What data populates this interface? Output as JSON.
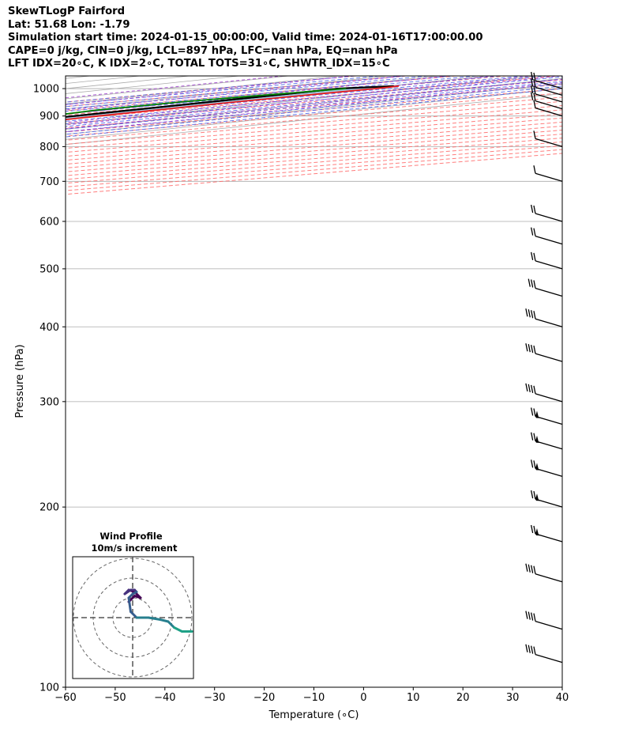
{
  "header": {
    "title": "SkewTLogP Fairford",
    "location": "Lat: 51.68   Lon: -1.79",
    "times": "Simulation start time: 2024-01-15_00:00:00, Valid time: 2024-01-16T17:00:00.00",
    "params": "CAPE=0 j/kg, CIN=0 j/kg, LCL=897 hPa, LFC=nan hPa, EQ=nan hPa",
    "indices": "LFT IDX=20∘C, K IDX=2∘C, TOTAL TOTS=31∘C, SHWTR_IDX=15∘C"
  },
  "chart_data": {
    "type": "line",
    "skewt": {
      "xlabel": "Temperature (∘C)",
      "ylabel": "Pressure (hPa)",
      "xlim": [
        -60,
        40
      ],
      "ylim": [
        1050,
        100
      ],
      "x_ticks": [
        -60,
        -50,
        -40,
        -30,
        -20,
        -10,
        0,
        10,
        20,
        30,
        40
      ],
      "x_tick_labels": [
        "−60",
        "−50",
        "−40",
        "−30",
        "−20",
        "−10",
        "0",
        "10",
        "20",
        "30",
        "40"
      ],
      "p_ticks": [
        1000,
        900,
        800,
        700,
        600,
        500,
        400,
        300,
        200,
        100
      ],
      "p_tick_labels": [
        "1000",
        "900",
        "800",
        "700",
        "600",
        "500",
        "400",
        "300",
        "200",
        "100"
      ],
      "grid": true,
      "colors": {
        "temperature": "#e41a1c",
        "dewpoint": "#008000",
        "parcel": "#000000",
        "area": "#a3c6df",
        "dry_adiabat": "#ff6666",
        "moist_adiabat": "#4a5fe6",
        "mixing_ratio": "#9933cc",
        "isotherm": "#aaaaaa",
        "isobar": "#aaaaaa"
      },
      "series": [
        {
          "key": "temperature",
          "points": [
            [
              1010,
              2
            ],
            [
              1000,
              2.5
            ],
            [
              980,
              1.5
            ],
            [
              950,
              0.5
            ],
            [
              900,
              0.5
            ],
            [
              850,
              2.5
            ],
            [
              800,
              3.6
            ],
            [
              750,
              3.6
            ],
            [
              700,
              2.8
            ],
            [
              650,
              1.2
            ],
            [
              600,
              -1.8
            ],
            [
              550,
              -5.5
            ],
            [
              500,
              -10.3
            ],
            [
              450,
              -15.5
            ],
            [
              400,
              -22
            ],
            [
              350,
              -29
            ],
            [
              320,
              -34.5
            ],
            [
              300,
              -39.5
            ],
            [
              250,
              -50
            ],
            [
              200,
              -61
            ],
            [
              190,
              -61.5
            ],
            [
              175,
              -60.5
            ],
            [
              160,
              -59
            ],
            [
              140,
              -58
            ],
            [
              125,
              -58
            ],
            [
              110,
              -59
            ],
            [
              100,
              -60.5
            ]
          ]
        },
        {
          "key": "dewpoint",
          "points": [
            [
              1000,
              -3.5
            ],
            [
              980,
              -6.5
            ],
            [
              950,
              -10.5
            ],
            [
              920,
              -11.5
            ],
            [
              880,
              -7.0
            ],
            [
              850,
              -6.5
            ],
            [
              800,
              -7.8
            ],
            [
              750,
              -7.0
            ],
            [
              700,
              -4.3
            ],
            [
              650,
              -3.6
            ],
            [
              600,
              -6.5
            ],
            [
              550,
              -12.8
            ],
            [
              500,
              -21.3
            ],
            [
              460,
              -26.3
            ],
            [
              400,
              -28.3
            ],
            [
              350,
              -32.2
            ],
            [
              300,
              -40
            ],
            [
              270,
              -44
            ],
            [
              250,
              -48.3
            ],
            [
              225,
              -51.5
            ],
            [
              200,
              -59
            ],
            [
              175,
              -59.3
            ],
            [
              160,
              -60
            ],
            [
              145,
              -64.5
            ],
            [
              130,
              -67.5
            ],
            [
              120,
              -69
            ],
            [
              100,
              -75
            ]
          ]
        },
        {
          "key": "parcel",
          "points": [
            [
              1000,
              -5
            ],
            [
              975,
              -4.9
            ],
            [
              950,
              -4.7
            ],
            [
              925,
              -4.6
            ],
            [
              900,
              -4.3
            ],
            [
              850,
              -5.9
            ],
            [
              800,
              -8.3
            ],
            [
              750,
              -11.3
            ],
            [
              700,
              -14.6
            ],
            [
              650,
              -18.6
            ],
            [
              600,
              -23.7
            ],
            [
              550,
              -29.1
            ],
            [
              500,
              -35.2
            ],
            [
              450,
              -42.1
            ],
            [
              400,
              -50
            ],
            [
              350,
              -59.3
            ],
            [
              300,
              -70.5
            ],
            [
              250,
              -83.8
            ],
            [
              200,
              -101
            ],
            [
              150,
              -123.8
            ],
            [
              120,
              -141.7
            ],
            [
              100,
              -156.2
            ]
          ]
        }
      ],
      "parcel_start": [
        1010,
        1.0
      ],
      "wind_barbs": [
        {
          "p": 1000,
          "barbs": 2
        },
        {
          "p": 975,
          "barbs": 2
        },
        {
          "p": 950,
          "barbs": 2
        },
        {
          "p": 925,
          "barbs": 2
        },
        {
          "p": 900,
          "barbs": 1
        },
        {
          "p": 800,
          "barbs": 1
        },
        {
          "p": 700,
          "barbs": 1
        },
        {
          "p": 600,
          "barbs": 2
        },
        {
          "p": 550,
          "barbs": 2
        },
        {
          "p": 500,
          "barbs": 2
        },
        {
          "p": 450,
          "barbs": 3
        },
        {
          "p": 400,
          "barbs": 4
        },
        {
          "p": 350,
          "barbs": 5
        },
        {
          "p": 300,
          "barbs": 6
        },
        {
          "p": 275,
          "barbs": 7
        },
        {
          "p": 250,
          "barbs": 7
        },
        {
          "p": 225,
          "barbs": 7
        },
        {
          "p": 200,
          "barbs": 7
        },
        {
          "p": 175,
          "barbs": 7
        },
        {
          "p": 150,
          "barbs": 5
        },
        {
          "p": 125,
          "barbs": 5
        },
        {
          "p": 110,
          "barbs": 5
        }
      ]
    },
    "hodograph": {
      "title": "Wind Profile",
      "subtitle": "10m/s increment",
      "ring_increment": 10,
      "rings": 3,
      "points_uv": [
        [
          -2,
          8
        ],
        [
          1,
          11
        ],
        [
          4,
          10
        ],
        [
          1,
          13
        ],
        [
          -2,
          14
        ],
        [
          -4,
          12
        ],
        [
          -1,
          14
        ],
        [
          1,
          14
        ],
        [
          2,
          13
        ],
        [
          0,
          12
        ],
        [
          -2,
          10
        ],
        [
          -1,
          3
        ],
        [
          2,
          0
        ],
        [
          8,
          0
        ],
        [
          14,
          -1
        ],
        [
          18,
          -2
        ],
        [
          21,
          -5
        ],
        [
          25,
          -7
        ],
        [
          30,
          -7
        ]
      ]
    }
  }
}
